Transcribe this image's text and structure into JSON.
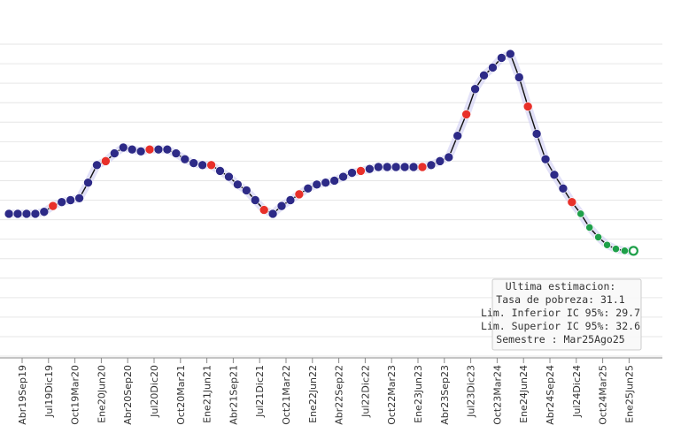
{
  "chart_data": {
    "type": "line",
    "title": "",
    "xlabel": "",
    "ylabel": "",
    "ylim": [
      27,
      43
    ],
    "grid": true,
    "colors": {
      "line": "#111111",
      "regular": "#2d2a87",
      "highlight": "#e8302a",
      "estimate": "#1fa04a",
      "halo": "#cfcdf3"
    },
    "tick_labels": [
      "Abr19Sep19",
      "Jul19Dic19",
      "Oct19Mar20",
      "Ene20Jun20",
      "Abr20Sep20",
      "Jul20Dic20",
      "Oct20Mar21",
      "Ene21Jun21",
      "Abr21Sep21",
      "Jul21Dic21",
      "Oct21Mar22",
      "Ene22Jun22",
      "Abr22Sep22",
      "Jul22Dic22",
      "Oct22Mar23",
      "Ene23Jun23",
      "Abr23Sep23",
      "Jul23Dic23",
      "Oct23Mar24",
      "Ene24Jun24",
      "Abr24Sep24",
      "Jul24Dic24",
      "Oct24Mar25",
      "Ene25Jun25"
    ],
    "x_start_index": 1.5,
    "series": [
      {
        "name": "Tasa de pobreza",
        "values": [
          34.3,
          34.3,
          34.3,
          34.3,
          34.4,
          34.7,
          34.9,
          35.0,
          35.1,
          35.9,
          36.8,
          37.0,
          37.4,
          37.7,
          37.6,
          37.5,
          37.6,
          37.6,
          37.6,
          37.4,
          37.1,
          36.9,
          36.8,
          36.8,
          36.5,
          36.2,
          35.8,
          35.5,
          35.0,
          34.5,
          34.3,
          34.7,
          35.0,
          35.3,
          35.6,
          35.8,
          35.9,
          36.0,
          36.2,
          36.4,
          36.5,
          36.6,
          36.7,
          36.7,
          36.7,
          36.7,
          36.7,
          36.7,
          36.8,
          37.0,
          37.2,
          38.3,
          39.4,
          40.7,
          41.4,
          41.8,
          42.3,
          42.5,
          41.3,
          39.8,
          38.4,
          37.1,
          36.3,
          35.6,
          34.9,
          34.3,
          33.6,
          33.1,
          32.7,
          32.5,
          32.4,
          32.4
        ],
        "point_types": [
          "r",
          "r",
          "r",
          "r",
          "r",
          "h",
          "r",
          "r",
          "r",
          "r",
          "r",
          "h",
          "r",
          "r",
          "r",
          "r",
          "h",
          "r",
          "r",
          "r",
          "r",
          "r",
          "r",
          "h",
          "r",
          "r",
          "r",
          "r",
          "r",
          "h",
          "r",
          "r",
          "r",
          "h",
          "r",
          "r",
          "r",
          "r",
          "r",
          "r",
          "h",
          "r",
          "r",
          "r",
          "r",
          "r",
          "r",
          "h",
          "r",
          "r",
          "r",
          "r",
          "h",
          "r",
          "r",
          "r",
          "r",
          "r",
          "r",
          "h",
          "r",
          "r",
          "r",
          "r",
          "h",
          "e",
          "e",
          "e",
          "e",
          "e",
          "e",
          "e"
        ]
      }
    ],
    "tooltip": {
      "title": "Ultima estimacion:",
      "lines": [
        "Tasa de pobreza:  31.1",
        "Lim. Inferior IC 95%:  29.7",
        "Lim. Superior IC 95%:  32.6",
        "Semestre : Mar25Ago25"
      ]
    }
  }
}
